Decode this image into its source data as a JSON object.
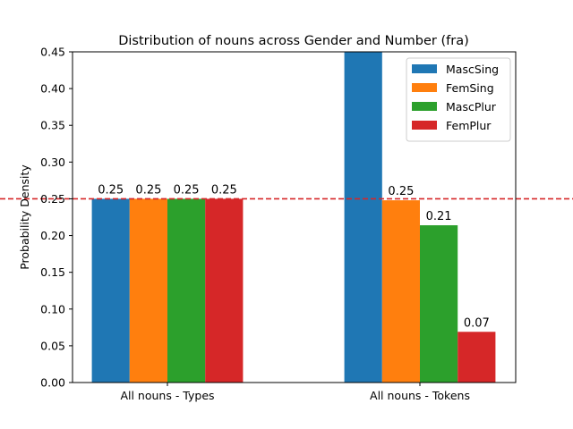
{
  "chart_data": {
    "type": "bar",
    "title": "Distribution of nouns across Gender and Number (fra)",
    "xlabel": "",
    "ylabel": "Probability Density",
    "ylim": [
      0,
      0.45
    ],
    "yticks": [
      "0.00",
      "0.05",
      "0.10",
      "0.15",
      "0.20",
      "0.25",
      "0.30",
      "0.35",
      "0.40",
      "0.45"
    ],
    "categories": [
      "All nouns - Types",
      "All nouns - Tokens"
    ],
    "series": [
      {
        "name": "MascSing",
        "color": "#1f77b4",
        "values": [
          0.25,
          0.47
        ],
        "labels": [
          "0.25",
          ""
        ]
      },
      {
        "name": "FemSing",
        "color": "#ff7f0e",
        "values": [
          0.25,
          0.248
        ],
        "labels": [
          "0.25",
          "0.25"
        ]
      },
      {
        "name": "MascPlur",
        "color": "#2ca02c",
        "values": [
          0.25,
          0.214
        ],
        "labels": [
          "0.25",
          "0.21"
        ]
      },
      {
        "name": "FemPlur",
        "color": "#d62728",
        "values": [
          0.25,
          0.069
        ],
        "labels": [
          "0.25",
          "0.07"
        ]
      }
    ],
    "reference_line": {
      "y": 0.25,
      "color": "#d62728",
      "style": "dashed"
    },
    "legend": {
      "position": "top-right"
    },
    "grid": false
  }
}
